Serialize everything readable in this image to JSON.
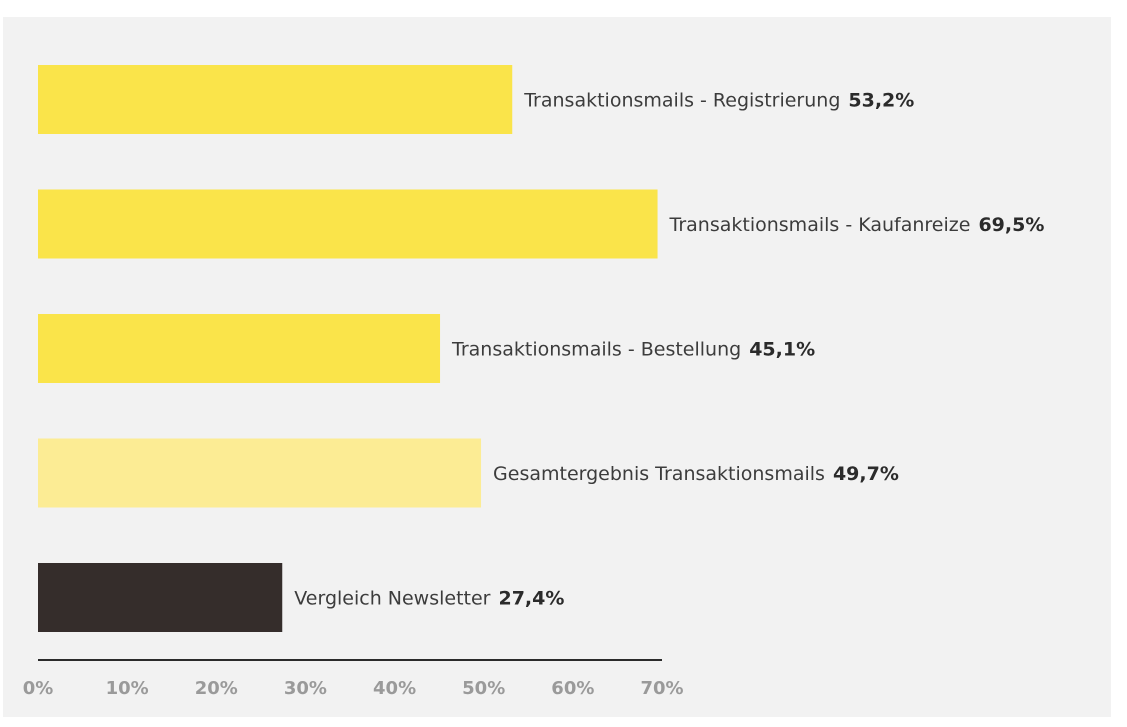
{
  "chart_data": {
    "type": "bar",
    "orientation": "horizontal",
    "categories": [
      "Transaktionsmails - Registrierung",
      "Transaktionsmails - Kaufanreize",
      "Transaktionsmails - Bestellung",
      "Gesamtergebnis Transaktionsmails",
      "Vergleich Newsletter"
    ],
    "values": [
      53.2,
      69.5,
      45.1,
      49.7,
      27.4
    ],
    "value_labels": [
      "53,2%",
      "69,5%",
      "45,1%",
      "49,7%",
      "27,4%"
    ],
    "bar_colors": [
      "#fae44a",
      "#fae44a",
      "#fae44a",
      "#fcec94",
      "#352d2b"
    ],
    "xlim": [
      0,
      70
    ],
    "x_ticks": [
      0,
      10,
      20,
      30,
      40,
      50,
      60,
      70
    ],
    "x_tick_labels": [
      "0%",
      "10%",
      "20%",
      "30%",
      "40%",
      "50%",
      "60%",
      "70%"
    ],
    "grid": false,
    "legend": "none",
    "title": "",
    "xlabel": "",
    "ylabel": ""
  },
  "colors": {
    "background": "#f2f2f2",
    "axis": "#2b2b2b",
    "tick_text": "#9a9a9a",
    "label_text": "#3c3c3c"
  }
}
